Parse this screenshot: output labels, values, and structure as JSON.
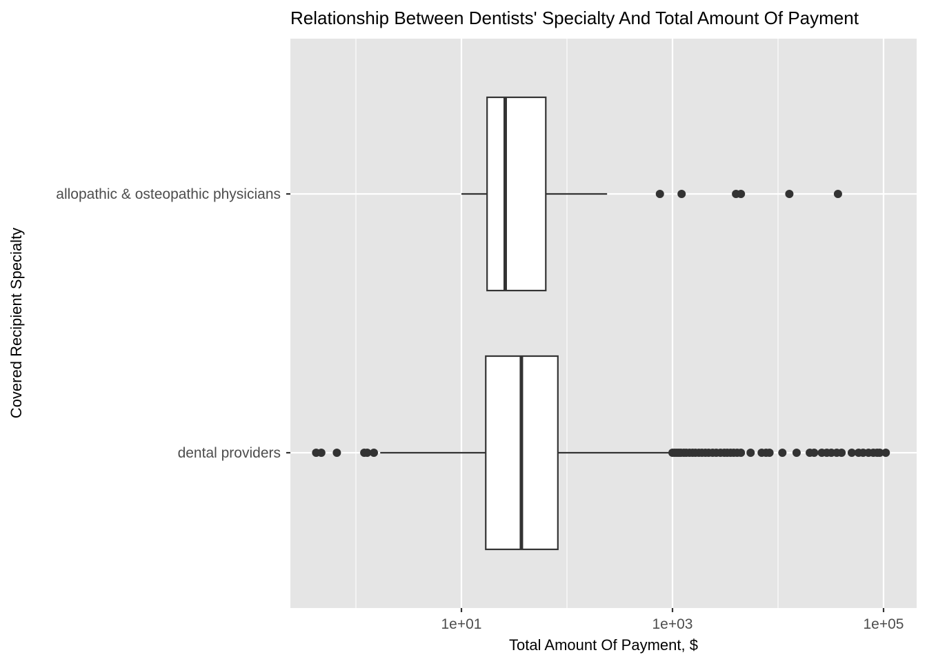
{
  "chart_data": {
    "type": "boxplot",
    "orientation": "horizontal",
    "title": "Relationship Between Dentists' Specialty And Total Amount Of Payment",
    "xlabel": "Total Amount Of Payment, $",
    "ylabel": "Covered Recipient Specialty",
    "x_scale": "log10",
    "xlim": [
      0.23,
      140000
    ],
    "x_ticks": [
      10,
      1000,
      100000
    ],
    "x_tick_labels": [
      "1e+01",
      "1e+03",
      "1e+05"
    ],
    "x_minor_ticks": [
      1,
      100,
      10000
    ],
    "grid": true,
    "legend": "none",
    "categories": [
      "allopathic & osteopathic physicians",
      "dental providers"
    ],
    "boxes": [
      {
        "category": "allopathic & osteopathic physicians",
        "whisker_low": 10,
        "q1": 17.5,
        "median": 26,
        "q3": 63,
        "whisker_high": 240,
        "outliers": [
          760,
          1220,
          4000,
          4450,
          12800,
          37000
        ]
      },
      {
        "category": "dental providers",
        "whisker_low": 1.7,
        "q1": 17,
        "median": 37,
        "q3": 82,
        "whisker_high": 960,
        "outliers": [
          0.42,
          0.47,
          0.66,
          1.2,
          1.28,
          1.48,
          1000,
          1050,
          1100,
          1150,
          1200,
          1280,
          1350,
          1450,
          1550,
          1650,
          1780,
          1900,
          2050,
          2200,
          2400,
          2600,
          2850,
          3100,
          3300,
          3550,
          3800,
          4100,
          4450,
          5500,
          7000,
          7700,
          8300,
          11000,
          15000,
          20000,
          22000,
          26000,
          29000,
          32000,
          36000,
          40000,
          50000,
          58000,
          64000,
          72000,
          80000,
          87000,
          92000,
          105000
        ]
      }
    ],
    "colors": {
      "panel_background": "#e5e5e5",
      "grid_line": "#ffffff",
      "box_fill": "#ffffff",
      "box_line": "#333333",
      "outlier": "#333333",
      "text": "#4d4d4d",
      "title": "#000000"
    }
  }
}
